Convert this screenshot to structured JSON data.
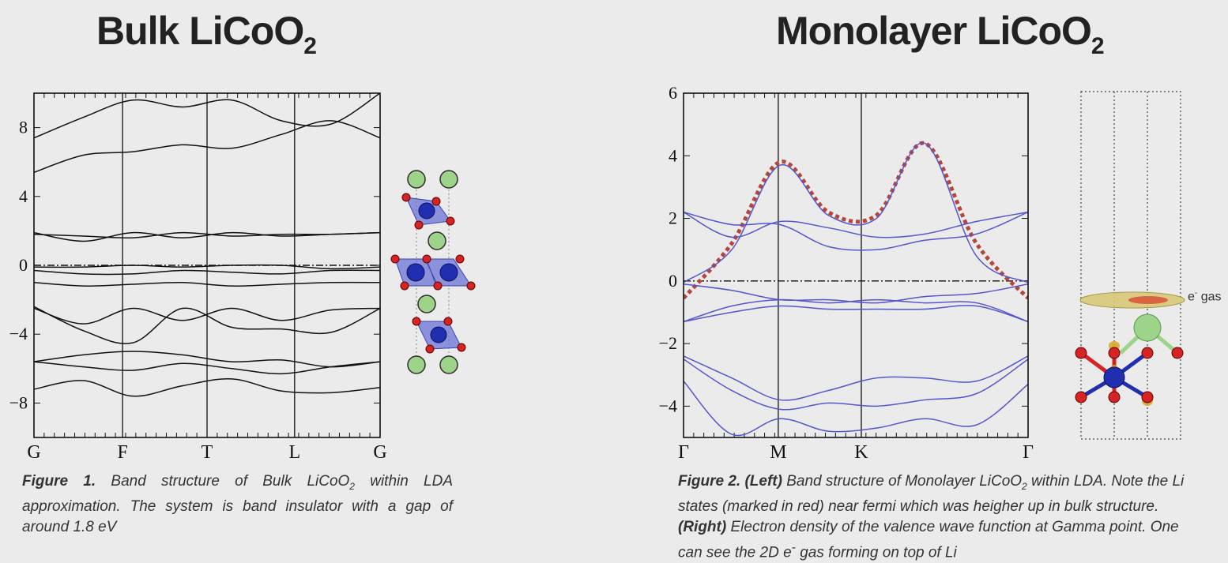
{
  "titles": {
    "left": {
      "text": "Bulk LiCoO",
      "sub": "2"
    },
    "right": {
      "text": "Monolayer LiCoO",
      "sub": "2"
    }
  },
  "figure1": {
    "caption": {
      "label": "Figure 1.",
      "text1": " Band structure of Bulk LiCoO",
      "sub": "2",
      "text2": " within LDA approximation. The system is band insulator with a gap of around 1.8 eV"
    }
  },
  "figure2": {
    "caption": {
      "label": "Figure 2.",
      "left_tag": "(Left)",
      "text1": " Band structure of Monolayer LiCoO",
      "sub": "2",
      "text2": " within LDA. Note the Li states (marked in red) near fermi which was heigher up in bulk structure. ",
      "right_tag": "(Right)",
      "text3": " Electron density of the valence wave function at Gamma point. One can see the 2D e",
      "sup": "-",
      "text4": " gas forming on top of Li"
    },
    "egas_label": {
      "text": "e",
      "sup": "-",
      "rest": " gas"
    }
  },
  "chart_data": [
    {
      "type": "line",
      "title": "",
      "xlabel": "",
      "ylabel": "",
      "k_points": [
        "G",
        "F",
        "T",
        "L",
        "G"
      ],
      "y_ticks": [
        8,
        4,
        0,
        -4,
        -8
      ],
      "ylim": [
        -10,
        10
      ],
      "fermi_level": 0,
      "line_color": "#111111",
      "series": [
        {
          "values": [
            -7.2,
            -6.7,
            -7.6,
            -7.0,
            -6.6,
            -7.3,
            -7.4,
            -7.1
          ]
        },
        {
          "values": [
            -5.6,
            -5.9,
            -6.1,
            -5.7,
            -6.0,
            -6.3,
            -5.9,
            -5.6
          ]
        },
        {
          "values": [
            -5.6,
            -5.2,
            -5.0,
            -5.2,
            -5.6,
            -5.5,
            -5.9,
            -5.6
          ]
        },
        {
          "values": [
            -2.4,
            -3.8,
            -4.5,
            -2.5,
            -3.6,
            -3.7,
            -3.9,
            -2.5
          ]
        },
        {
          "values": [
            -2.5,
            -3.4,
            -2.5,
            -3.2,
            -2.5,
            -3.2,
            -2.6,
            -2.5
          ]
        },
        {
          "values": [
            -1.0,
            -1.2,
            -1.1,
            -1.0,
            -1.2,
            -1.1,
            -1.0,
            -1.0
          ]
        },
        {
          "values": [
            -0.3,
            -0.5,
            -0.5,
            -0.3,
            -0.4,
            -0.5,
            -0.3,
            -0.3
          ]
        },
        {
          "values": [
            -0.1,
            -0.1,
            0.0,
            -0.1,
            0.0,
            0.0,
            -0.2,
            -0.1
          ]
        },
        {
          "values": [
            1.9,
            1.4,
            1.9,
            1.6,
            1.9,
            1.7,
            1.8,
            1.9
          ]
        },
        {
          "values": [
            1.8,
            1.7,
            1.6,
            1.9,
            1.7,
            1.8,
            1.8,
            1.9
          ]
        },
        {
          "values": [
            5.4,
            6.4,
            6.6,
            7.0,
            6.8,
            7.6,
            8.4,
            7.4
          ]
        },
        {
          "values": [
            7.4,
            8.6,
            9.6,
            9.2,
            9.6,
            8.4,
            8.2,
            10.0
          ]
        }
      ]
    },
    {
      "type": "line",
      "title": "",
      "xlabel": "",
      "ylabel": "",
      "k_points": [
        "Γ",
        "M",
        "K",
        "Γ"
      ],
      "y_ticks": [
        6,
        4,
        2,
        0,
        -2,
        -4
      ],
      "ylim": [
        -5,
        6
      ],
      "fermi_level": 0,
      "line_color": "#5555cc",
      "highlight_color": "#b5463a",
      "series": [
        {
          "name": "Li states",
          "x": [
            0,
            0.14,
            0.28,
            0.42,
            0.56,
            0.7,
            0.85,
            1.0
          ],
          "values": [
            -0.55,
            1.2,
            3.8,
            2.2,
            2.1,
            4.4,
            1.2,
            -0.55
          ]
        },
        {
          "x": [
            0,
            0.14,
            0.28,
            0.42,
            0.56,
            0.7,
            0.85,
            1.0
          ],
          "values": [
            -0.05,
            1.0,
            3.7,
            2.1,
            2.0,
            4.4,
            0.8,
            -0.05
          ]
        },
        {
          "x": [
            0,
            0.14,
            0.28,
            0.42,
            0.56,
            0.7,
            0.85,
            1.0
          ],
          "values": [
            2.2,
            1.4,
            1.9,
            1.7,
            1.4,
            1.5,
            1.9,
            2.2
          ]
        },
        {
          "x": [
            0,
            0.14,
            0.28,
            0.42,
            0.56,
            0.7,
            0.85,
            1.0
          ],
          "values": [
            2.2,
            1.8,
            1.8,
            1.1,
            1.0,
            1.3,
            1.5,
            2.2
          ]
        },
        {
          "x": [
            0,
            0.14,
            0.28,
            0.42,
            0.56,
            0.7,
            0.85,
            1.0
          ],
          "values": [
            -0.1,
            -0.3,
            -0.6,
            -0.6,
            -0.7,
            -0.5,
            -0.4,
            -0.1
          ]
        },
        {
          "x": [
            0,
            0.14,
            0.28,
            0.42,
            0.56,
            0.7,
            0.85,
            1.0
          ],
          "values": [
            -1.3,
            -1.0,
            -0.8,
            -0.9,
            -0.9,
            -0.9,
            -0.8,
            -1.3
          ]
        },
        {
          "x": [
            0,
            0.14,
            0.28,
            0.42,
            0.56,
            0.7,
            0.85,
            1.0
          ],
          "values": [
            -1.3,
            -0.8,
            -0.6,
            -0.7,
            -0.6,
            -0.7,
            -0.7,
            -1.3
          ]
        },
        {
          "x": [
            0,
            0.14,
            0.28,
            0.42,
            0.56,
            0.7,
            0.85,
            1.0
          ],
          "values": [
            -2.4,
            -3.1,
            -3.8,
            -3.5,
            -3.1,
            -3.1,
            -3.2,
            -2.4
          ]
        },
        {
          "x": [
            0,
            0.14,
            0.28,
            0.42,
            0.56,
            0.7,
            0.85,
            1.0
          ],
          "values": [
            -2.5,
            -3.5,
            -4.1,
            -3.9,
            -4.0,
            -3.8,
            -3.6,
            -2.5
          ]
        },
        {
          "x": [
            0,
            0.14,
            0.28,
            0.42,
            0.56,
            0.7,
            0.85,
            1.0
          ],
          "values": [
            -3.2,
            -4.9,
            -4.4,
            -4.8,
            -4.7,
            -4.4,
            -4.6,
            -3.3
          ]
        }
      ]
    }
  ],
  "colors": {
    "li_atom": "#9ed48a",
    "co_atom": "#1f2faf",
    "o_atom": "#d42424",
    "octahedron": "#6b73d6",
    "density": "#d9c97a"
  },
  "icons": {
    "bulk_structure": "bulk-crystal-structure-icon",
    "monolayer_structure": "monolayer-crystal-structure-icon"
  }
}
